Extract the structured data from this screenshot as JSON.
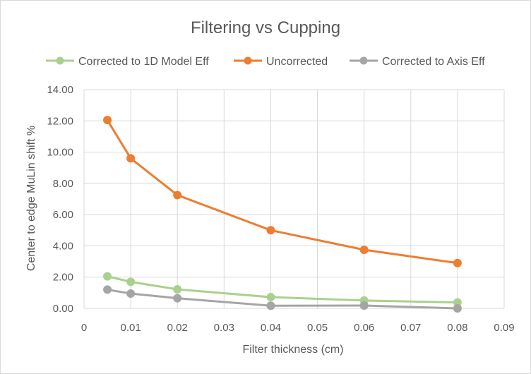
{
  "chart_data": {
    "type": "line",
    "title": "Filtering vs Cupping",
    "xlabel": "Filter thickness (cm)",
    "ylabel": "Center to edge MuLin shift %",
    "xlim": [
      0,
      0.09
    ],
    "ylim": [
      0,
      14
    ],
    "x_ticks": [
      "0",
      "0.01",
      "0.02",
      "0.03",
      "0.04",
      "0.05",
      "0.06",
      "0.07",
      "0.08",
      "0.09"
    ],
    "y_ticks": [
      "0.00",
      "2.00",
      "4.00",
      "6.00",
      "8.00",
      "10.00",
      "12.00",
      "14.00"
    ],
    "grid": true,
    "legend_position": "top",
    "series": [
      {
        "name": "Corrected to 1D Model Eff",
        "color": "#a9d18e",
        "x": [
          0.005,
          0.01,
          0.02,
          0.04,
          0.06,
          0.08
        ],
        "y": [
          2.05,
          1.7,
          1.22,
          0.72,
          0.5,
          0.38
        ]
      },
      {
        "name": "Uncorrected",
        "color": "#ed7d31",
        "x": [
          0.005,
          0.01,
          0.02,
          0.04,
          0.06,
          0.08
        ],
        "y": [
          12.05,
          9.6,
          7.25,
          5.0,
          3.75,
          2.9
        ]
      },
      {
        "name": "Corrected to Axis Eff",
        "color": "#a5a5a5",
        "x": [
          0.005,
          0.01,
          0.02,
          0.04,
          0.06,
          0.08
        ],
        "y": [
          1.2,
          0.95,
          0.65,
          0.17,
          0.18,
          0.0
        ]
      }
    ]
  }
}
